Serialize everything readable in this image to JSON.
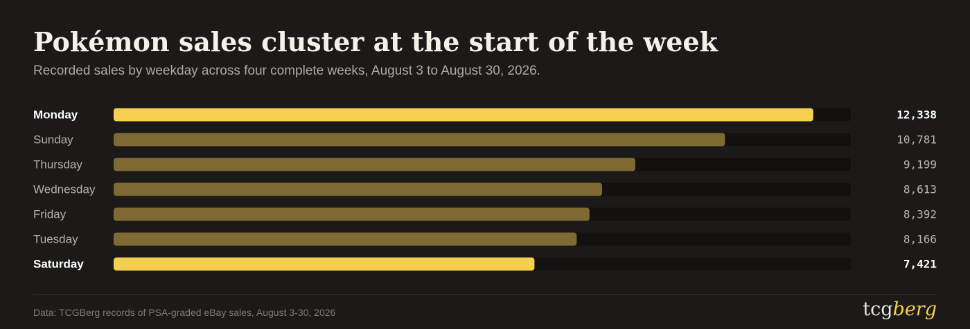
{
  "header": {
    "title": "Pokémon sales cluster at the start of the week",
    "subtitle": "Recorded sales by weekday across four complete weeks, August 3 to August 30, 2026."
  },
  "footer": {
    "source": "Data: TCGBerg records of PSA-graded eBay sales, August 3-30, 2026",
    "logo_part1": "tcg",
    "logo_part2": "berg"
  },
  "colors": {
    "background": "#1b1a19",
    "track": "#121110",
    "highlight": "#f7cf4f",
    "muted_bar": "#7e6a32",
    "label_highlight": "#ffffff",
    "label_muted": "#b3b0aa",
    "value_highlight": "#ffffff",
    "value_muted": "#b8b5af"
  },
  "chart_data": {
    "type": "bar",
    "orientation": "horizontal",
    "categories": [
      "Monday",
      "Sunday",
      "Thursday",
      "Wednesday",
      "Friday",
      "Tuesday",
      "Saturday"
    ],
    "values": [
      12338,
      10781,
      9199,
      8613,
      8392,
      8166,
      7421
    ],
    "value_labels": [
      "12,338",
      "10,781",
      "9,199",
      "8,613",
      "8,392",
      "8,166",
      "7,421"
    ],
    "highlighted": [
      "Monday",
      "Saturday"
    ],
    "xlim": [
      0,
      13000
    ],
    "grid": false,
    "legend": "none"
  }
}
